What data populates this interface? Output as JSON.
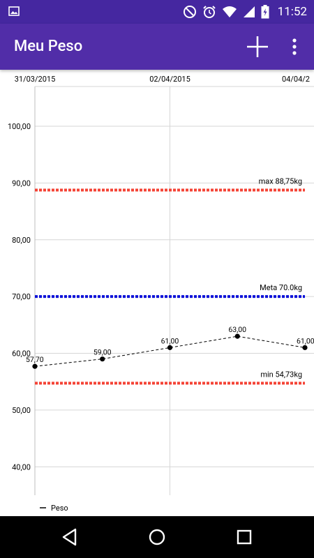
{
  "status_bar": {
    "time": "11:52",
    "left_icon": "image-icon",
    "icons": [
      "do-not-disturb-icon",
      "alarm-icon",
      "wifi-icon",
      "cell-signal-icon",
      "battery-icon"
    ]
  },
  "app_bar": {
    "title": "Meu Peso",
    "add_icon": "add-icon",
    "more_icon": "more-vert-icon"
  },
  "chart_data": {
    "type": "line",
    "x": [
      "31/03/2015",
      "01/04/2015",
      "02/04/2015",
      "03/04/2015",
      "04/04/2015"
    ],
    "x_tick_labels": [
      "31/03/2015",
      "02/04/2015",
      "04/04/2"
    ],
    "y_ticks": [
      "40,00",
      "50,00",
      "60,00",
      "70,00",
      "80,00",
      "90,00",
      "100,00"
    ],
    "ylim": [
      35,
      107
    ],
    "series": [
      {
        "name": "Peso",
        "values": [
          57.7,
          59.0,
          61.0,
          63.0,
          61.0
        ],
        "labels": [
          "57,70",
          "59,00",
          "61,00",
          "63,00",
          "61,00"
        ]
      }
    ],
    "limit_lines": [
      {
        "label": "max 88,75kg",
        "value": 88.75,
        "color": "#f44336"
      },
      {
        "label": "Meta 70.0kg",
        "value": 70.0,
        "color": "#0d12d9"
      },
      {
        "label": "min 54,73kg",
        "value": 54.73,
        "color": "#f44336"
      }
    ],
    "legend": {
      "position": "bottom-left"
    },
    "grid": true
  },
  "nav_bar": {
    "icons": [
      "back-icon",
      "home-icon",
      "recents-icon"
    ]
  }
}
